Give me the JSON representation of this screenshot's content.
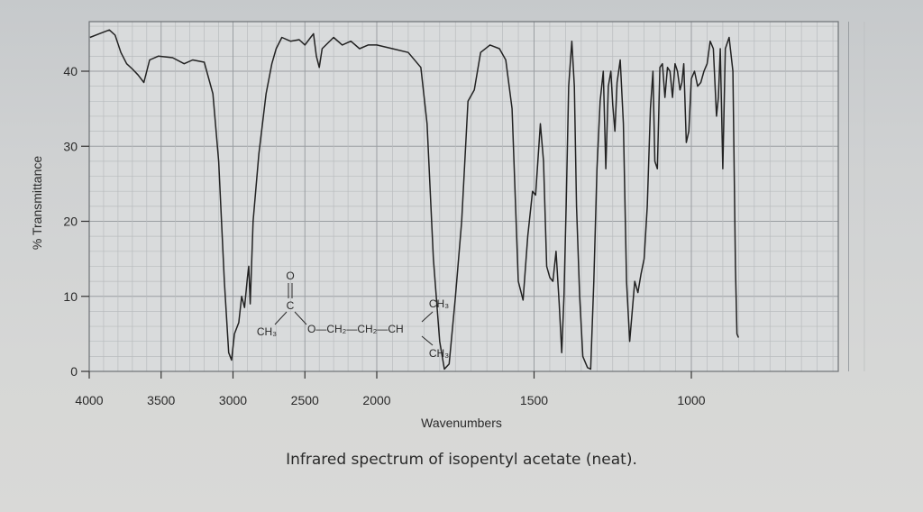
{
  "caption": "Infrared spectrum of isopentyl acetate (neat).",
  "chart_data": {
    "type": "line",
    "title": "",
    "xlabel": "Wavenumbers",
    "ylabel": "% Transmittance",
    "xlim": [
      4000,
      450
    ],
    "ylim": [
      0,
      46
    ],
    "x_break": {
      "at": 2000,
      "left_scale": "per 500",
      "right_scale": "per 500 compressed"
    },
    "x_ticks": [
      "4000",
      "3500",
      "3000",
      "2500",
      "2000",
      "1500",
      "1000"
    ],
    "y_ticks": [
      "0",
      "10",
      "20",
      "30",
      "40"
    ],
    "grid": true,
    "series": [
      {
        "values": [
          [
            3995,
            44.5
          ],
          [
            3930,
            45.0
          ],
          [
            3860,
            45.5
          ],
          [
            3820,
            44.8
          ],
          [
            3780,
            42.5
          ],
          [
            3740,
            41.0
          ],
          [
            3700,
            40.3
          ],
          [
            3660,
            39.5
          ],
          [
            3620,
            38.5
          ],
          [
            3580,
            41.5
          ],
          [
            3520,
            42.0
          ],
          [
            3420,
            41.8
          ],
          [
            3340,
            41.0
          ],
          [
            3280,
            41.5
          ],
          [
            3200,
            41.2
          ],
          [
            3140,
            37.0
          ],
          [
            3100,
            28.0
          ],
          [
            3060,
            12.0
          ],
          [
            3030,
            2.5
          ],
          [
            3010,
            1.5
          ],
          [
            2990,
            5.0
          ],
          [
            2960,
            6.5
          ],
          [
            2940,
            10.0
          ],
          [
            2920,
            8.5
          ],
          [
            2900,
            12.5
          ],
          [
            2890,
            14.0
          ],
          [
            2880,
            9.0
          ],
          [
            2860,
            20.0
          ],
          [
            2820,
            29.0
          ],
          [
            2770,
            37.0
          ],
          [
            2730,
            41.0
          ],
          [
            2700,
            43.0
          ],
          [
            2660,
            44.5
          ],
          [
            2600,
            44.0
          ],
          [
            2540,
            44.2
          ],
          [
            2500,
            43.5
          ],
          [
            2460,
            44.5
          ],
          [
            2440,
            45.0
          ],
          [
            2420,
            42.0
          ],
          [
            2400,
            40.5
          ],
          [
            2380,
            43.0
          ],
          [
            2300,
            44.5
          ],
          [
            2240,
            43.5
          ],
          [
            2180,
            44.0
          ],
          [
            2120,
            43.0
          ],
          [
            2060,
            43.5
          ],
          [
            2000,
            43.5
          ],
          [
            1950,
            43.0
          ],
          [
            1900,
            42.5
          ],
          [
            1860,
            40.5
          ],
          [
            1840,
            33.0
          ],
          [
            1820,
            15.0
          ],
          [
            1800,
            4.0
          ],
          [
            1785,
            0.3
          ],
          [
            1770,
            1.0
          ],
          [
            1750,
            10.0
          ],
          [
            1730,
            20.0
          ],
          [
            1710,
            36.0
          ],
          [
            1690,
            37.5
          ],
          [
            1670,
            42.5
          ],
          [
            1640,
            43.5
          ],
          [
            1610,
            43.0
          ],
          [
            1590,
            41.5
          ],
          [
            1570,
            35.0
          ],
          [
            1550,
            12.0
          ],
          [
            1535,
            9.5
          ],
          [
            1520,
            18.0
          ],
          [
            1505,
            24.0
          ],
          [
            1495,
            23.5
          ],
          [
            1480,
            33.0
          ],
          [
            1470,
            28.0
          ],
          [
            1460,
            14.0
          ],
          [
            1450,
            12.5
          ],
          [
            1440,
            12.0
          ],
          [
            1430,
            16.0
          ],
          [
            1420,
            9.0
          ],
          [
            1412,
            2.5
          ],
          [
            1405,
            10.0
          ],
          [
            1398,
            22.0
          ],
          [
            1390,
            38.0
          ],
          [
            1380,
            44.0
          ],
          [
            1372,
            38.0
          ],
          [
            1365,
            22.0
          ],
          [
            1355,
            10.0
          ],
          [
            1345,
            2.0
          ],
          [
            1330,
            0.5
          ],
          [
            1320,
            0.3
          ],
          [
            1310,
            12.0
          ],
          [
            1300,
            27.0
          ],
          [
            1290,
            36.0
          ],
          [
            1280,
            40.0
          ],
          [
            1272,
            27.0
          ],
          [
            1264,
            38.0
          ],
          [
            1256,
            40.0
          ],
          [
            1250,
            35.5
          ],
          [
            1243,
            32.0
          ],
          [
            1236,
            38.5
          ],
          [
            1226,
            41.5
          ],
          [
            1216,
            33.0
          ],
          [
            1206,
            12.0
          ],
          [
            1196,
            4.0
          ],
          [
            1188,
            8.0
          ],
          [
            1180,
            12.0
          ],
          [
            1170,
            10.5
          ],
          [
            1160,
            13.0
          ],
          [
            1150,
            15.0
          ],
          [
            1140,
            22.0
          ],
          [
            1130,
            35.0
          ],
          [
            1122,
            40.0
          ],
          [
            1116,
            28.0
          ],
          [
            1108,
            27.0
          ],
          [
            1100,
            40.5
          ],
          [
            1092,
            41.0
          ],
          [
            1084,
            36.5
          ],
          [
            1076,
            40.5
          ],
          [
            1068,
            40.0
          ],
          [
            1060,
            36.5
          ],
          [
            1052,
            41.0
          ],
          [
            1044,
            40.0
          ],
          [
            1036,
            37.5
          ],
          [
            1030,
            38.5
          ],
          [
            1024,
            41.0
          ],
          [
            1016,
            30.5
          ],
          [
            1008,
            32.0
          ],
          [
            1000,
            39.0
          ],
          [
            990,
            40.0
          ],
          [
            980,
            38.0
          ],
          [
            970,
            38.5
          ],
          [
            960,
            40.0
          ],
          [
            950,
            41.0
          ],
          [
            940,
            44.0
          ],
          [
            930,
            43.0
          ],
          [
            920,
            34.0
          ],
          [
            914,
            36.5
          ],
          [
            908,
            43.0
          ],
          [
            900,
            27.0
          ],
          [
            892,
            43.0
          ],
          [
            880,
            44.5
          ],
          [
            868,
            40.0
          ],
          [
            860,
            14.0
          ],
          [
            855,
            5.0
          ],
          [
            850,
            4.5
          ]
        ]
      }
    ],
    "structure": {
      "o_top": "O",
      "carbonyl_c": "C",
      "ch3_left": "CH₃",
      "chain": "O—CH₂—CH₂—CH",
      "ch3_up": "CH₃",
      "ch3_down": "CH₃"
    }
  }
}
